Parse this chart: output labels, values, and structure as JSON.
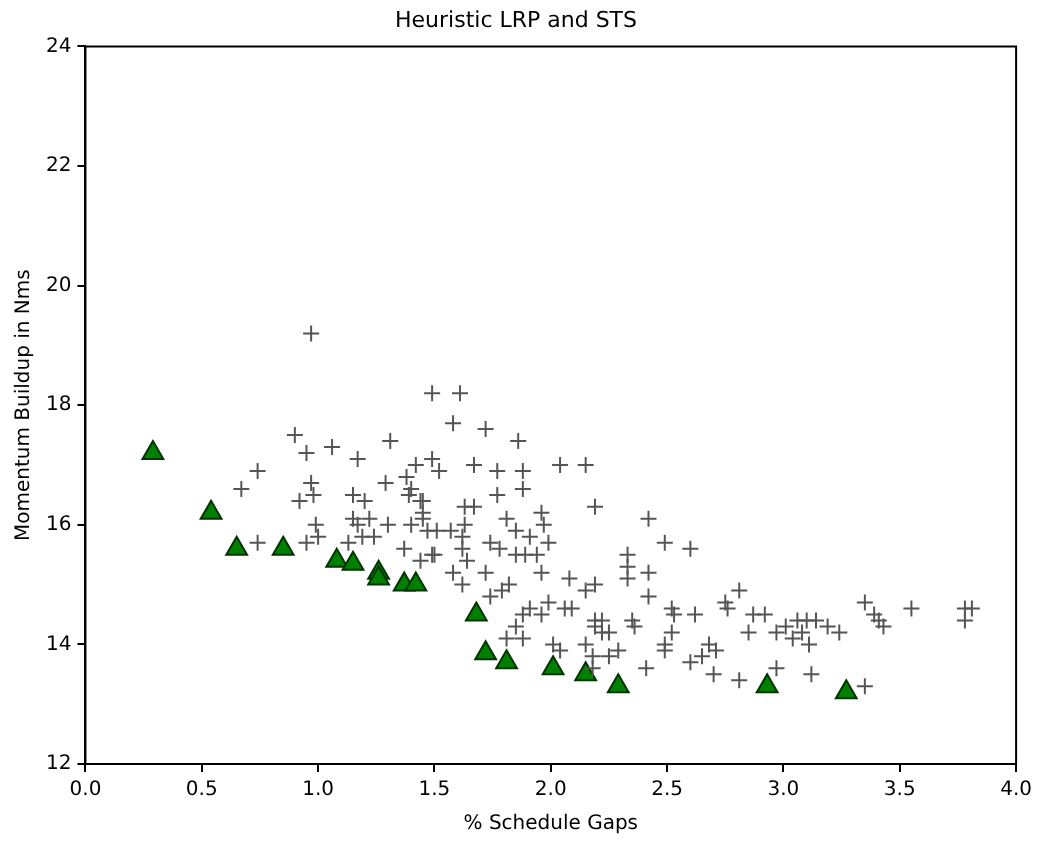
{
  "chart_data": {
    "type": "scatter",
    "title": "Heuristic LRP and STS",
    "xlabel": "% Schedule Gaps",
    "ylabel": "Momentum Buildup in Nms",
    "xlim": [
      0,
      4
    ],
    "xticks": [
      {
        "value": 0,
        "label": "0.0"
      },
      {
        "value": 0.5,
        "label": "0.5"
      },
      {
        "value": 1,
        "label": "1.0"
      },
      {
        "value": 1.5,
        "label": "1.5"
      },
      {
        "value": 2,
        "label": "2.0"
      },
      {
        "value": 2.5,
        "label": "2.5"
      },
      {
        "value": 3,
        "label": "3.0"
      },
      {
        "value": 3.5,
        "label": "3.5"
      },
      {
        "value": 4,
        "label": "4.0"
      }
    ],
    "ylim": [
      12,
      24
    ],
    "yticks": [
      12,
      14,
      16,
      18,
      20,
      22,
      24
    ],
    "grid": false,
    "legend": false,
    "series": [
      {
        "color": "#555555",
        "marker": "cross",
        "x": [
          0.97,
          1.49,
          0.9,
          1.06,
          0.95,
          1.17,
          1.31,
          0.74,
          0.67,
          0.97,
          0.92,
          0.98,
          1.15,
          1.2,
          1.29,
          1.38,
          1.42,
          1.39,
          1.44,
          1.49,
          0.99,
          1.15,
          1.17,
          1.22,
          1.3,
          1.4,
          1.47,
          1.0,
          1.13,
          1.19,
          1.24,
          1.37,
          1.44,
          1.49,
          0.74,
          0.95,
          1.45,
          1.61,
          1.58,
          1.72,
          1.86,
          1.52,
          1.67,
          1.77,
          1.88,
          2.04,
          2.15,
          1.88,
          1.77,
          2.19,
          1.4,
          1.45,
          1.45,
          1.63,
          1.67,
          1.81,
          1.96,
          1.97,
          1.63,
          1.51,
          1.57,
          1.62,
          1.74,
          1.85,
          1.91,
          1.99,
          1.78,
          1.85,
          1.89,
          1.94,
          1.62,
          1.5,
          1.64,
          1.58,
          1.72,
          1.62,
          1.82,
          1.96,
          1.74,
          1.79,
          1.88,
          1.91,
          1.96,
          1.85,
          1.88,
          1.81,
          1.99,
          2.06,
          2.09,
          2.08,
          2.15,
          2.19,
          2.19,
          2.22,
          2.22,
          2.19,
          2.25,
          2.15,
          2.01,
          2.04,
          2.18,
          2.18,
          2.25,
          2.29,
          2.33,
          2.33,
          2.33,
          2.35,
          2.36,
          2.42,
          2.42,
          2.42,
          2.49,
          2.6,
          2.52,
          2.53,
          2.52,
          2.49,
          2.49,
          2.41,
          2.62,
          2.6,
          2.68,
          2.81,
          2.75,
          2.76,
          2.87,
          2.92,
          2.85,
          2.71,
          2.65,
          2.7,
          2.81,
          2.97,
          2.97,
          3.01,
          3.06,
          3.1,
          3.14,
          3.04,
          3.08,
          3.11,
          3.19,
          3.24,
          3.12,
          3.35,
          3.39,
          3.41,
          3.43,
          3.35,
          3.55,
          3.78,
          3.81,
          3.78
        ],
        "values": [
          19.2,
          18.2,
          17.5,
          17.3,
          17.2,
          17.1,
          17.4,
          16.9,
          16.6,
          16.7,
          16.4,
          16.5,
          16.5,
          16.4,
          16.7,
          16.8,
          17.0,
          16.5,
          16.4,
          17.1,
          16.0,
          16.1,
          16.0,
          16.1,
          16.0,
          16.0,
          15.9,
          15.8,
          15.7,
          15.8,
          15.8,
          15.6,
          15.4,
          15.5,
          15.7,
          15.7,
          16.1,
          18.2,
          17.7,
          17.6,
          17.4,
          16.9,
          17.0,
          16.9,
          16.9,
          17.0,
          17.0,
          16.6,
          16.5,
          16.3,
          16.6,
          16.4,
          16.2,
          16.3,
          16.3,
          16.1,
          16.2,
          16.0,
          16.0,
          15.9,
          15.9,
          15.8,
          15.7,
          15.9,
          15.8,
          15.7,
          15.6,
          15.5,
          15.5,
          15.5,
          15.6,
          15.5,
          15.4,
          15.2,
          15.2,
          15.0,
          15.0,
          15.2,
          14.8,
          14.9,
          14.5,
          14.6,
          14.5,
          14.3,
          14.1,
          14.1,
          14.7,
          14.6,
          14.6,
          15.1,
          14.9,
          15.0,
          14.4,
          14.4,
          14.2,
          14.3,
          14.2,
          14.0,
          14.0,
          13.9,
          13.8,
          13.6,
          13.8,
          13.9,
          15.5,
          15.3,
          15.1,
          14.4,
          14.3,
          16.1,
          15.2,
          14.8,
          15.7,
          15.6,
          14.6,
          14.5,
          14.2,
          14.0,
          13.9,
          13.6,
          14.5,
          13.7,
          14.0,
          14.9,
          14.7,
          14.6,
          14.5,
          14.5,
          14.2,
          13.9,
          13.8,
          13.5,
          13.4,
          13.6,
          14.2,
          14.3,
          14.4,
          14.4,
          14.4,
          14.1,
          14.2,
          14.0,
          14.3,
          14.2,
          13.5,
          14.7,
          14.5,
          14.4,
          14.3,
          13.3,
          14.6,
          14.6,
          14.6,
          14.4
        ]
      },
      {
        "color": "#008000",
        "marker": "triangle",
        "x": [
          0.29,
          0.54,
          0.65,
          0.85,
          1.08,
          1.15,
          1.26,
          1.26,
          1.37,
          1.42,
          1.68,
          1.72,
          1.81,
          2.01,
          2.15,
          2.29,
          2.93,
          3.27
        ],
        "values": [
          17.2,
          16.2,
          15.6,
          15.6,
          15.4,
          15.35,
          15.2,
          15.1,
          15.0,
          15.0,
          14.5,
          13.85,
          13.7,
          13.6,
          13.5,
          13.3,
          13.3,
          13.2
        ]
      }
    ]
  }
}
